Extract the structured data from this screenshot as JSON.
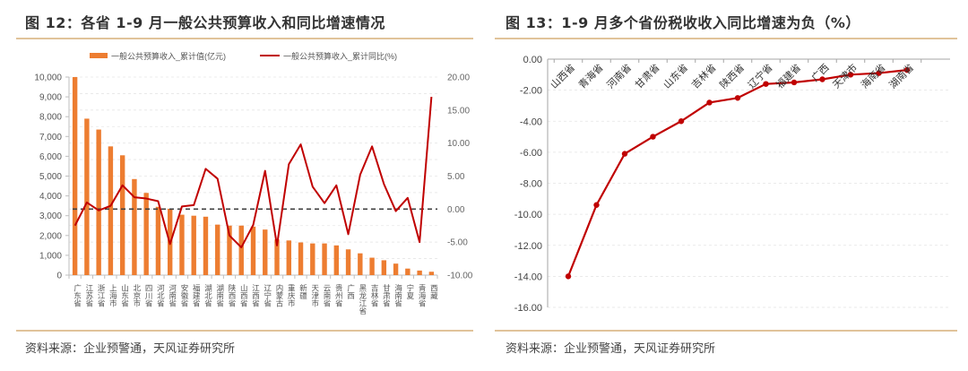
{
  "left": {
    "title": "图 12：各省 1-9 月一般公共预算收入和同比增速情况",
    "source": "资料来源：企业预警通，天风证券研究所"
  },
  "right": {
    "title": "图 13：1-9 月多个省份税收收入同比增速为负（%）",
    "source": "资料来源：企业预警通，天风证券研究所"
  },
  "colors": {
    "bar": "#ed7d31",
    "line": "#c00000",
    "rule": "#e0c39a",
    "zero_line": "#404040"
  },
  "chart_data": [
    {
      "type": "bar+line",
      "title": "图 12：各省 1-9 月一般公共预算收入和同比增速情况",
      "legend": [
        "一般公共预算收入_累计值(亿元)",
        "一般公共预算收入_累计同比(%)"
      ],
      "legend_position": "top",
      "categories": [
        "广东省",
        "江苏省",
        "浙江省",
        "上海市",
        "山东省",
        "北京市",
        "四川省",
        "河北省",
        "河南省",
        "安徽省",
        "福建省",
        "湖北省",
        "湖南省",
        "陕西省",
        "山西省",
        "江西省",
        "辽宁省",
        "内蒙古",
        "重庆市",
        "新疆",
        "天津市",
        "云南省",
        "贵州省",
        "广西",
        "黑龙江省",
        "吉林省",
        "甘肃省",
        "海南省",
        "宁夏",
        "青海省",
        "西藏"
      ],
      "series": [
        {
          "name": "一般公共预算收入_累计值(亿元)",
          "type": "bar",
          "axis": "left",
          "values": [
            10000,
            7900,
            7350,
            6500,
            6050,
            4850,
            4150,
            3450,
            3350,
            3050,
            3000,
            2950,
            2550,
            2500,
            2500,
            2450,
            2300,
            1800,
            1750,
            1650,
            1600,
            1600,
            1500,
            1300,
            1100,
            880,
            750,
            580,
            330,
            230,
            170
          ]
        },
        {
          "name": "一般公共预算收入_累计同比(%)",
          "type": "line",
          "axis": "right",
          "values": [
            -2.5,
            1.0,
            -0.2,
            0.5,
            3.6,
            1.8,
            1.6,
            1.2,
            -5.3,
            0.4,
            0.6,
            6.1,
            4.6,
            -4.0,
            -5.8,
            -2.4,
            5.8,
            -5.5,
            6.8,
            9.8,
            3.4,
            0.9,
            3.6,
            -3.8,
            5.2,
            9.5,
            3.8,
            -0.3,
            1.7,
            -5.0,
            17.0
          ]
        }
      ],
      "left_axis": {
        "ylim": [
          0,
          10000
        ],
        "ticks": [
          "0",
          "1,000",
          "2,000",
          "3,000",
          "4,000",
          "5,000",
          "6,000",
          "7,000",
          "8,000",
          "9,000",
          "10,000"
        ]
      },
      "right_axis": {
        "ylim": [
          -10,
          20
        ],
        "ticks": [
          "-10.00",
          "-5.00",
          "0.00",
          "5.00",
          "10.00",
          "15.00",
          "20.00"
        ]
      },
      "reference_line": {
        "axis": "right",
        "value": 0,
        "style": "dashed"
      },
      "grid": true
    },
    {
      "type": "line",
      "title": "图 13：1-9 月多个省份税收收入同比增速为负（%）",
      "categories": [
        "山西省",
        "青海省",
        "河南省",
        "甘肃省",
        "山东省",
        "吉林省",
        "陕西省",
        "辽宁省",
        "福建省",
        "广西",
        "天津市",
        "海南省",
        "湖南省"
      ],
      "values": [
        -14.0,
        -9.4,
        -6.1,
        -5.0,
        -4.0,
        -2.8,
        -2.5,
        -1.6,
        -1.5,
        -1.3,
        -1.0,
        -0.9,
        -0.7
      ],
      "ylim": [
        -16,
        0
      ],
      "yticks": [
        "0.00",
        "-2.00",
        "-4.00",
        "-6.00",
        "-8.00",
        "-10.00",
        "-12.00",
        "-14.00",
        "-16.00"
      ],
      "xlabel": "",
      "ylabel": "",
      "grid": true,
      "markers": true
    }
  ]
}
